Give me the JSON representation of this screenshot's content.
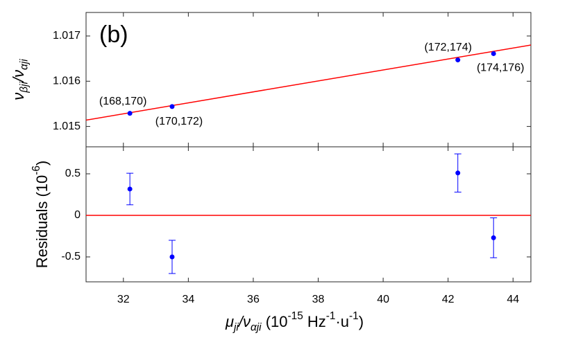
{
  "chart_data": [
    {
      "type": "scatter",
      "panel_label": "(b)",
      "ylabel": [
        {
          "text": "ν",
          "italic": true
        },
        {
          "text": "βji",
          "italic": true,
          "script": "sub"
        },
        {
          "text": "/ν",
          "italic": true
        },
        {
          "text": "αji",
          "italic": true,
          "script": "sub"
        }
      ],
      "xlim": [
        30.85,
        44.55
      ],
      "xticks": [
        32,
        34,
        36,
        38,
        40,
        42,
        44
      ],
      "ylim": [
        1.01455,
        1.01752
      ],
      "yticks": [
        1.015,
        1.016,
        1.017
      ],
      "series": [
        {
          "color": "#0000ff",
          "x": [
            32.2,
            33.5,
            42.3,
            43.4
          ],
          "values": [
            1.01529,
            1.01544,
            1.01647,
            1.01661
          ],
          "point_labels": [
            "(168,170)",
            "(170,172)",
            "(172,174)",
            "(174,176)"
          ]
        }
      ],
      "fit": {
        "color": "#ff0000",
        "x": [
          30.85,
          44.55
        ],
        "values": [
          1.01514,
          1.0168
        ]
      }
    },
    {
      "type": "errorbar",
      "ylabel": [
        {
          "text": "Residuals (10"
        },
        {
          "text": "-6",
          "script": "sup"
        },
        {
          "text": ")"
        }
      ],
      "xlabel": [
        {
          "text": "μ",
          "italic": true
        },
        {
          "text": "ji",
          "italic": true,
          "script": "sub"
        },
        {
          "text": "/ν",
          "italic": true
        },
        {
          "text": "αji",
          "italic": true,
          "script": "sub"
        },
        {
          "text": " (10"
        },
        {
          "text": "-15",
          "script": "sup"
        },
        {
          "text": " Hz"
        },
        {
          "text": "-1",
          "script": "sup"
        },
        {
          "text": "·u"
        },
        {
          "text": "-1",
          "script": "sup"
        },
        {
          "text": ")"
        }
      ],
      "xlim": [
        30.85,
        44.55
      ],
      "xticks": [
        32,
        34,
        36,
        38,
        40,
        42,
        44
      ],
      "ylim": [
        -0.8,
        0.825
      ],
      "yticks": [
        -0.5,
        0,
        0.5
      ],
      "series": [
        {
          "color": "#0000ff",
          "x": [
            32.2,
            33.5,
            42.3,
            43.4
          ],
          "values": [
            0.317,
            -0.5,
            0.51,
            -0.27
          ],
          "errors": [
            0.19,
            0.2,
            0.23,
            0.24
          ]
        }
      ],
      "hline": {
        "value": 0,
        "color": "#ff0000"
      }
    }
  ]
}
